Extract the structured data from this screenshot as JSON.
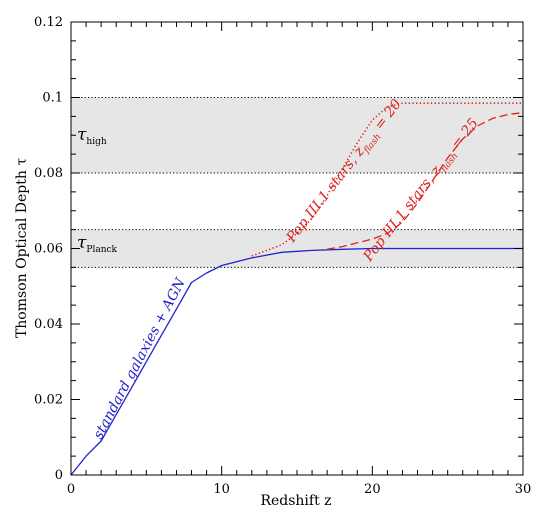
{
  "chart_data": {
    "type": "line",
    "xlabel": "Redshift z",
    "ylabel": "Thomson Optical Depth τ",
    "xlim": [
      0,
      30
    ],
    "ylim": [
      0,
      0.12
    ],
    "x_ticks": [
      "0",
      "10",
      "20",
      "30"
    ],
    "y_ticks": [
      "0",
      "0.02",
      "0.04",
      "0.06",
      "0.08",
      "0.1",
      "0.12"
    ],
    "grid": false,
    "bands": [
      {
        "symbol": "τ",
        "subscript": "high",
        "ymin": 0.08,
        "ymax": 0.1,
        "color": "#e6e6e6"
      },
      {
        "symbol": "τ",
        "subscript": "Planck",
        "ymin": 0.055,
        "ymax": 0.065,
        "color": "#e6e6e6"
      }
    ],
    "series": [
      {
        "name": "standard galaxies + AGN",
        "color": "#2222cc",
        "style": "solid",
        "x": [
          0,
          1,
          2,
          3,
          4,
          5,
          6,
          7,
          8,
          9,
          10,
          12,
          14,
          16,
          18,
          20,
          25,
          30
        ],
        "y": [
          0,
          0.005,
          0.009,
          0.016,
          0.023,
          0.03,
          0.037,
          0.044,
          0.051,
          0.0535,
          0.0555,
          0.0575,
          0.059,
          0.0595,
          0.0598,
          0.06,
          0.06,
          0.06
        ]
      },
      {
        "name": "Pop III.1 stars, z_flash = 20",
        "color": "#dd2222",
        "style": "dotted",
        "x": [
          12,
          13,
          14,
          15,
          16,
          17,
          18,
          19,
          20,
          21,
          22,
          23,
          30
        ],
        "y": [
          0.058,
          0.0595,
          0.061,
          0.064,
          0.068,
          0.074,
          0.081,
          0.088,
          0.094,
          0.0975,
          0.0985,
          0.0985,
          0.0985
        ]
      },
      {
        "name": "Pop III.1 stars, z_flash = 25",
        "color": "#dd2222",
        "style": "dashed",
        "x": [
          17,
          18,
          19,
          20,
          21,
          22,
          23,
          24,
          25,
          26,
          27,
          28,
          29,
          30
        ],
        "y": [
          0.0598,
          0.0605,
          0.0615,
          0.0625,
          0.064,
          0.067,
          0.072,
          0.078,
          0.084,
          0.089,
          0.0925,
          0.0945,
          0.0955,
          0.096
        ]
      }
    ],
    "annotations": {
      "sm": {
        "text": "standard galaxies + AGN",
        "color": "#2222cc"
      },
      "p20": {
        "text": "Pop III.1 stars, z",
        "sub": "flash",
        "tail": " = 20",
        "color": "#dd2222"
      },
      "p25": {
        "text": "Pop III.1 stars, z",
        "sub": "flash",
        "tail": " = 25",
        "color": "#dd2222"
      }
    }
  }
}
